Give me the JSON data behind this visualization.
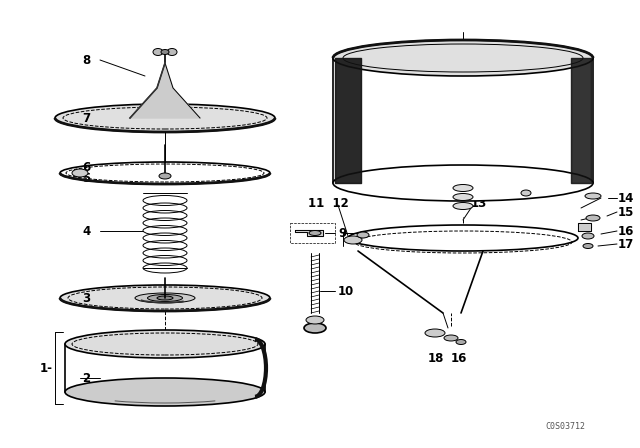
{
  "bg_color": "#ffffff",
  "line_color": "#000000",
  "figure_width": 6.4,
  "figure_height": 4.48,
  "dpi": 100,
  "watermark": "C0S03712"
}
